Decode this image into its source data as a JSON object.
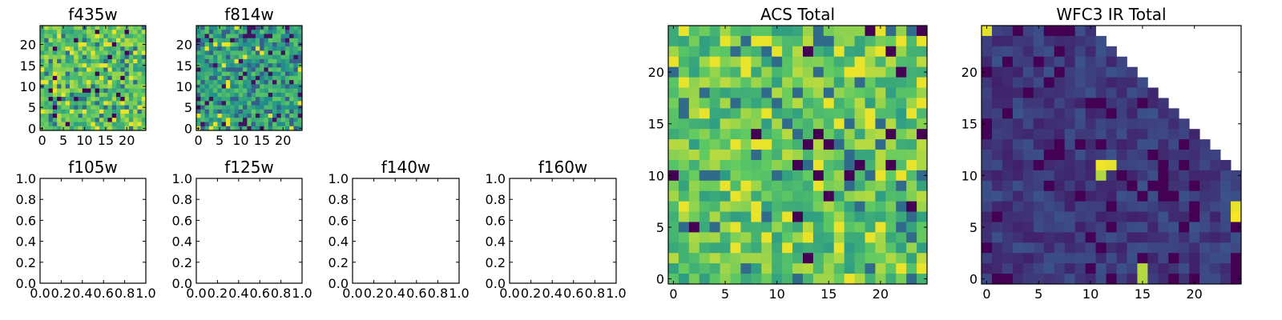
{
  "figure": {
    "colormap": "viridis",
    "colors": [
      "#440154",
      "#3b528b",
      "#21918c",
      "#5ec962",
      "#fde725"
    ]
  },
  "chart_data": [
    {
      "type": "heatmap",
      "title": "f435w",
      "xlim": [
        -0.5,
        24.5
      ],
      "ylim": [
        -0.5,
        24.5
      ],
      "xticks": [
        "0",
        "5",
        "10",
        "15",
        "20"
      ],
      "yticks": [
        "0",
        "5",
        "10",
        "15",
        "20"
      ],
      "grid": false,
      "pattern": "noise-high"
    },
    {
      "type": "heatmap",
      "title": "f814w",
      "xlim": [
        -0.5,
        24.5
      ],
      "ylim": [
        -0.5,
        24.5
      ],
      "xticks": [
        "0",
        "5",
        "10",
        "15",
        "20"
      ],
      "yticks": [
        "0",
        "5",
        "10",
        "15",
        "20"
      ],
      "grid": false,
      "pattern": "noise-mid"
    },
    {
      "type": "empty",
      "title": "f105w",
      "xlim": [
        0,
        1
      ],
      "ylim": [
        0,
        1
      ],
      "xticks": [
        "0.0",
        "0.2",
        "0.4",
        "0.6",
        "0.8",
        "1.0"
      ],
      "yticks": [
        "0.0",
        "0.2",
        "0.4",
        "0.6",
        "0.8",
        "1.0"
      ]
    },
    {
      "type": "empty",
      "title": "f125w",
      "xlim": [
        0,
        1
      ],
      "ylim": [
        0,
        1
      ],
      "xticks": [
        "0.0",
        "0.2",
        "0.4",
        "0.6",
        "0.8",
        "1.0"
      ],
      "yticks": [
        "0.0",
        "0.2",
        "0.4",
        "0.6",
        "0.8",
        "1.0"
      ]
    },
    {
      "type": "empty",
      "title": "f140w",
      "xlim": [
        0,
        1
      ],
      "ylim": [
        0,
        1
      ],
      "xticks": [
        "0.0",
        "0.2",
        "0.4",
        "0.6",
        "0.8",
        "1.0"
      ],
      "yticks": [
        "0.0",
        "0.2",
        "0.4",
        "0.6",
        "0.8",
        "1.0"
      ]
    },
    {
      "type": "empty",
      "title": "f160w",
      "xlim": [
        0,
        1
      ],
      "ylim": [
        0,
        1
      ],
      "xticks": [
        "0.0",
        "0.2",
        "0.4",
        "0.6",
        "0.8",
        "1.0"
      ],
      "yticks": [
        "0.0",
        "0.2",
        "0.4",
        "0.6",
        "0.8",
        "1.0"
      ]
    },
    {
      "type": "heatmap",
      "title": "ACS Total",
      "xlim": [
        -0.5,
        24.5
      ],
      "ylim": [
        -0.5,
        24.5
      ],
      "xticks": [
        "0",
        "5",
        "10",
        "15",
        "20"
      ],
      "yticks": [
        "0",
        "5",
        "10",
        "15",
        "20"
      ],
      "grid": false,
      "pattern": "noise-high"
    },
    {
      "type": "heatmap",
      "title": "WFC3 IR Total",
      "xlim": [
        -0.5,
        24.5
      ],
      "ylim": [
        -0.5,
        24.5
      ],
      "xticks": [
        "0",
        "5",
        "10",
        "15",
        "20"
      ],
      "yticks": [
        "0",
        "5",
        "10",
        "15",
        "20"
      ],
      "grid": false,
      "pattern": "low-with-masked-corner",
      "bright_pixels": [
        [
          0,
          24
        ],
        [
          11,
          11
        ],
        [
          12,
          11
        ],
        [
          11,
          10
        ],
        [
          15,
          1
        ],
        [
          15,
          0
        ],
        [
          24,
          7
        ],
        [
          24,
          6
        ]
      ]
    }
  ]
}
